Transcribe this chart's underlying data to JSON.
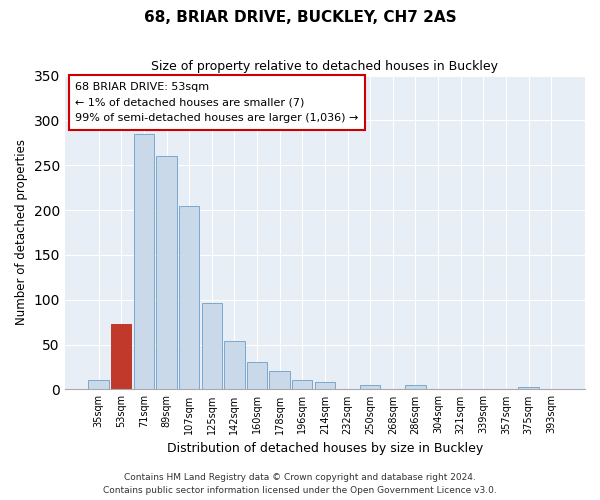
{
  "title": "68, BRIAR DRIVE, BUCKLEY, CH7 2AS",
  "subtitle": "Size of property relative to detached houses in Buckley",
  "xlabel": "Distribution of detached houses by size in Buckley",
  "ylabel": "Number of detached properties",
  "bar_labels": [
    "35sqm",
    "53sqm",
    "71sqm",
    "89sqm",
    "107sqm",
    "125sqm",
    "142sqm",
    "160sqm",
    "178sqm",
    "196sqm",
    "214sqm",
    "232sqm",
    "250sqm",
    "268sqm",
    "286sqm",
    "304sqm",
    "321sqm",
    "339sqm",
    "357sqm",
    "375sqm",
    "393sqm"
  ],
  "bar_values": [
    10,
    73,
    285,
    260,
    204,
    96,
    54,
    31,
    21,
    10,
    8,
    0,
    5,
    0,
    5,
    0,
    0,
    0,
    0,
    3,
    0
  ],
  "highlight_bar_index": 1,
  "bar_color": "#c9d9ea",
  "bar_edge_color": "#7aa8cc",
  "highlight_bar_color": "#c0392b",
  "highlight_bar_edge_color": "#c0392b",
  "ylim": [
    0,
    350
  ],
  "yticks": [
    0,
    50,
    100,
    150,
    200,
    250,
    300,
    350
  ],
  "annotation_title": "68 BRIAR DRIVE: 53sqm",
  "annotation_line1": "← 1% of detached houses are smaller (7)",
  "annotation_line2": "99% of semi-detached houses are larger (1,036) →",
  "annotation_box_edgecolor": "#cc0000",
  "footer_line1": "Contains HM Land Registry data © Crown copyright and database right 2024.",
  "footer_line2": "Contains public sector information licensed under the Open Government Licence v3.0.",
  "bg_color": "#e8eef5",
  "grid_color": "#ffffff"
}
